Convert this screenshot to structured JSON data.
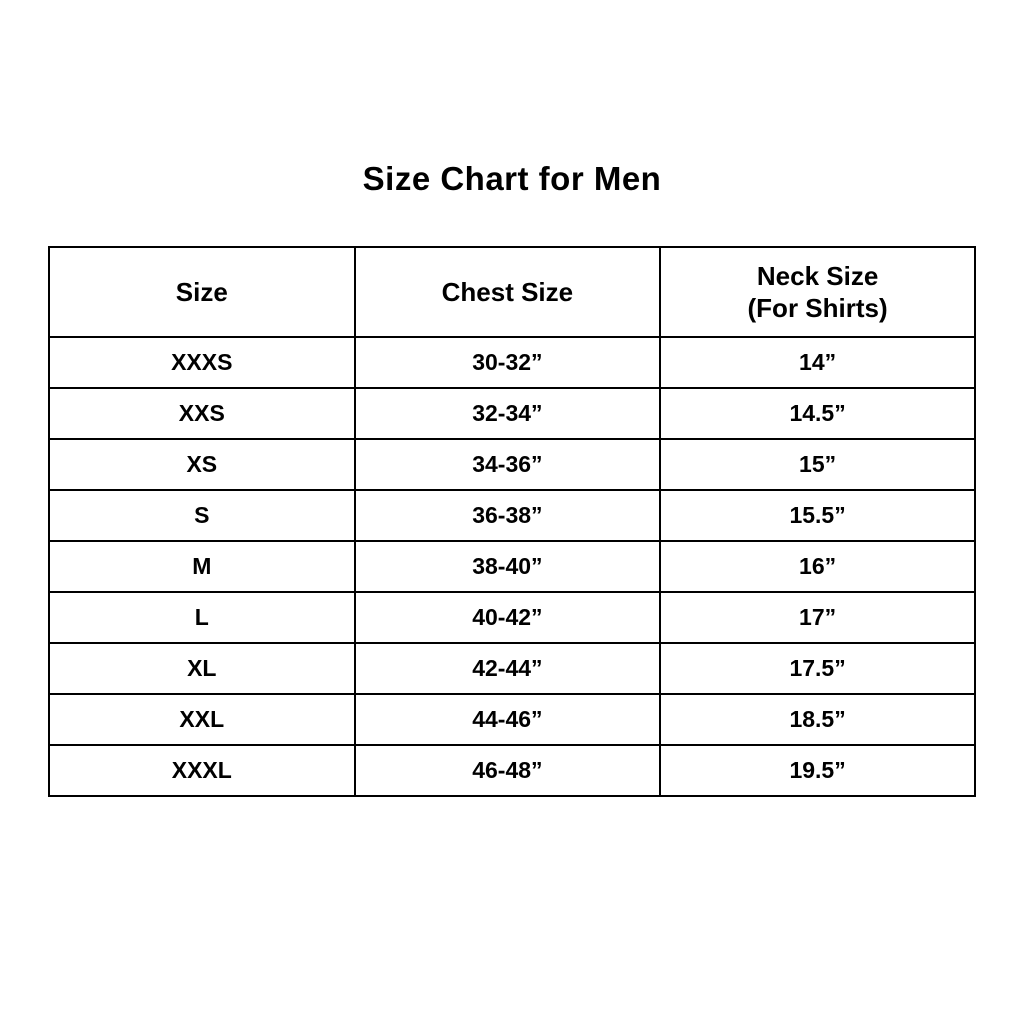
{
  "page": {
    "title": "Size Chart for Men",
    "background_color": "#ffffff",
    "border_color": "#000000",
    "text_color": "#000000"
  },
  "chart_data": {
    "type": "table",
    "title": "Size Chart for Men",
    "columns": [
      "Size",
      "Chest Size",
      "Neck Size (For Shirts)"
    ],
    "header": {
      "size": "Size",
      "chest": "Chest Size",
      "neck_line1": "Neck Size",
      "neck_line2": "(For Shirts)"
    },
    "rows": [
      {
        "size": "XXXS",
        "chest": "30-32”",
        "neck": "14”"
      },
      {
        "size": "XXS",
        "chest": "32-34”",
        "neck": "14.5”"
      },
      {
        "size": "XS",
        "chest": "34-36”",
        "neck": "15”"
      },
      {
        "size": "S",
        "chest": "36-38”",
        "neck": "15.5”"
      },
      {
        "size": "M",
        "chest": "38-40”",
        "neck": "16”"
      },
      {
        "size": "L",
        "chest": "40-42”",
        "neck": "17”"
      },
      {
        "size": "XL",
        "chest": "42-44”",
        "neck": "17.5”"
      },
      {
        "size": "XXL",
        "chest": "44-46”",
        "neck": "18.5”"
      },
      {
        "size": "XXXL",
        "chest": "46-48”",
        "neck": "19.5”"
      }
    ]
  }
}
